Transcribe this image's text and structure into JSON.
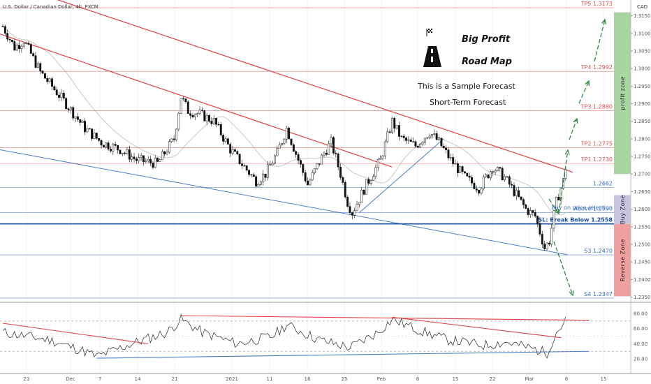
{
  "chart_data": {
    "type": "candlestick",
    "title": "U.S. Dollar / Canadian Dollar, 4h, FXCM",
    "currency_label": "CAD",
    "y_range": [
      1.2335,
      1.3195
    ],
    "y_ticks": [
      "1.31500",
      "1.31000",
      "1.30500",
      "1.30000",
      "1.29500",
      "1.29000",
      "1.28500",
      "1.28000",
      "1.27500",
      "1.27000",
      "1.26500",
      "1.26000",
      "1.25500",
      "1.25000",
      "1.24500",
      "1.24000",
      "1.23500"
    ],
    "x_ticks": [
      "23",
      "Dec",
      "7",
      "14",
      "21",
      "2021",
      "11",
      "18",
      "25",
      "Feb",
      "8",
      "15",
      "22",
      "Mar",
      "8",
      "15"
    ],
    "price_path": [
      {
        "t": 0,
        "p": 1.312
      },
      {
        "t": 5,
        "p": 1.306
      },
      {
        "t": 9,
        "p": 1.308
      },
      {
        "t": 16,
        "p": 1.299
      },
      {
        "t": 27,
        "p": 1.29
      },
      {
        "t": 35,
        "p": 1.283
      },
      {
        "t": 42,
        "p": 1.279
      },
      {
        "t": 50,
        "p": 1.277
      },
      {
        "t": 57,
        "p": 1.274
      },
      {
        "t": 66,
        "p": 1.273
      },
      {
        "t": 73,
        "p": 1.28
      },
      {
        "t": 76,
        "p": 1.292
      },
      {
        "t": 79,
        "p": 1.288
      },
      {
        "t": 84,
        "p": 1.287
      },
      {
        "t": 90,
        "p": 1.285
      },
      {
        "t": 97,
        "p": 1.277
      },
      {
        "t": 103,
        "p": 1.272
      },
      {
        "t": 108,
        "p": 1.268
      },
      {
        "t": 112,
        "p": 1.27
      },
      {
        "t": 117,
        "p": 1.276
      },
      {
        "t": 121,
        "p": 1.283
      },
      {
        "t": 126,
        "p": 1.274
      },
      {
        "t": 130,
        "p": 1.267
      },
      {
        "t": 137,
        "p": 1.276
      },
      {
        "t": 140,
        "p": 1.279
      },
      {
        "t": 144,
        "p": 1.27
      },
      {
        "t": 147,
        "p": 1.262
      },
      {
        "t": 149,
        "p": 1.259
      },
      {
        "t": 155,
        "p": 1.267
      },
      {
        "t": 161,
        "p": 1.274
      },
      {
        "t": 166,
        "p": 1.285
      },
      {
        "t": 170,
        "p": 1.28
      },
      {
        "t": 176,
        "p": 1.278
      },
      {
        "t": 182,
        "p": 1.282
      },
      {
        "t": 186,
        "p": 1.279
      },
      {
        "t": 191,
        "p": 1.274
      },
      {
        "t": 197,
        "p": 1.269
      },
      {
        "t": 203,
        "p": 1.266
      },
      {
        "t": 209,
        "p": 1.272
      },
      {
        "t": 214,
        "p": 1.269
      },
      {
        "t": 219,
        "p": 1.264
      },
      {
        "t": 223,
        "p": 1.26
      },
      {
        "t": 227,
        "p": 1.258
      },
      {
        "t": 231,
        "p": 1.249
      },
      {
        "t": 233,
        "p": 1.251
      },
      {
        "t": 236,
        "p": 1.262
      },
      {
        "t": 239,
        "p": 1.268
      },
      {
        "t": 240,
        "p": 1.272
      }
    ],
    "levels": [
      {
        "label": "TP5 1.3173",
        "value": 1.3173,
        "color": "#e05050"
      },
      {
        "label": "TP4 1.2992",
        "value": 1.2992,
        "color": "#e05050"
      },
      {
        "label": "TP3 1.2880",
        "value": 1.288,
        "color": "#e05050"
      },
      {
        "label": "TP2 1.2775",
        "value": 1.2775,
        "color": "#e05050"
      },
      {
        "label": "TP1 1.2730",
        "value": 1.273,
        "color": "#e05050"
      },
      {
        "label": "1.2662",
        "value": 1.2662,
        "color": "#3a6fc0"
      },
      {
        "label": "Above 1.2590",
        "value": 1.259,
        "color": "#3a6fc0"
      },
      {
        "label": "SL: Break Below 1.2558",
        "value": 1.2558,
        "color": "#1a4fa0"
      },
      {
        "label": "S3 1.2470",
        "value": 1.247,
        "color": "#3a6fc0"
      },
      {
        "label": "S4 1.2347",
        "value": 1.2347,
        "color": "#3a6fc0"
      }
    ],
    "annotations": {
      "brand_line1": "Big Profit",
      "brand_line2": "Road Map",
      "note1": "This is a Sample Forecast",
      "note2": "Short-Term Forecast",
      "buy_note": "Buy on price rejection"
    },
    "zones": [
      {
        "label": "profit zone",
        "from": 1.27,
        "to": 1.316,
        "color": "#a8d5a2"
      },
      {
        "label": "Buy Zone",
        "from": 1.2558,
        "to": 1.264,
        "color": "#c9c2e3"
      },
      {
        "label": "Reverse Zone",
        "from": 1.2352,
        "to": 1.2558,
        "color": "#f0a0a0"
      }
    ],
    "oscillator": {
      "y_ticks": [
        "80.00",
        "60.00",
        "40.00",
        "20.00"
      ],
      "y_range": [
        10,
        90
      ],
      "path": [
        {
          "t": 0,
          "v": 55
        },
        {
          "t": 20,
          "v": 45
        },
        {
          "t": 35,
          "v": 30
        },
        {
          "t": 40,
          "v": 23
        },
        {
          "t": 55,
          "v": 40
        },
        {
          "t": 70,
          "v": 55
        },
        {
          "t": 76,
          "v": 72
        },
        {
          "t": 85,
          "v": 55
        },
        {
          "t": 100,
          "v": 40
        },
        {
          "t": 115,
          "v": 50
        },
        {
          "t": 121,
          "v": 65
        },
        {
          "t": 135,
          "v": 45
        },
        {
          "t": 148,
          "v": 35
        },
        {
          "t": 160,
          "v": 55
        },
        {
          "t": 166,
          "v": 72
        },
        {
          "t": 180,
          "v": 55
        },
        {
          "t": 190,
          "v": 45
        },
        {
          "t": 205,
          "v": 38
        },
        {
          "t": 215,
          "v": 42
        },
        {
          "t": 228,
          "v": 32
        },
        {
          "t": 232,
          "v": 28
        },
        {
          "t": 236,
          "v": 55
        },
        {
          "t": 240,
          "v": 70
        }
      ]
    }
  }
}
